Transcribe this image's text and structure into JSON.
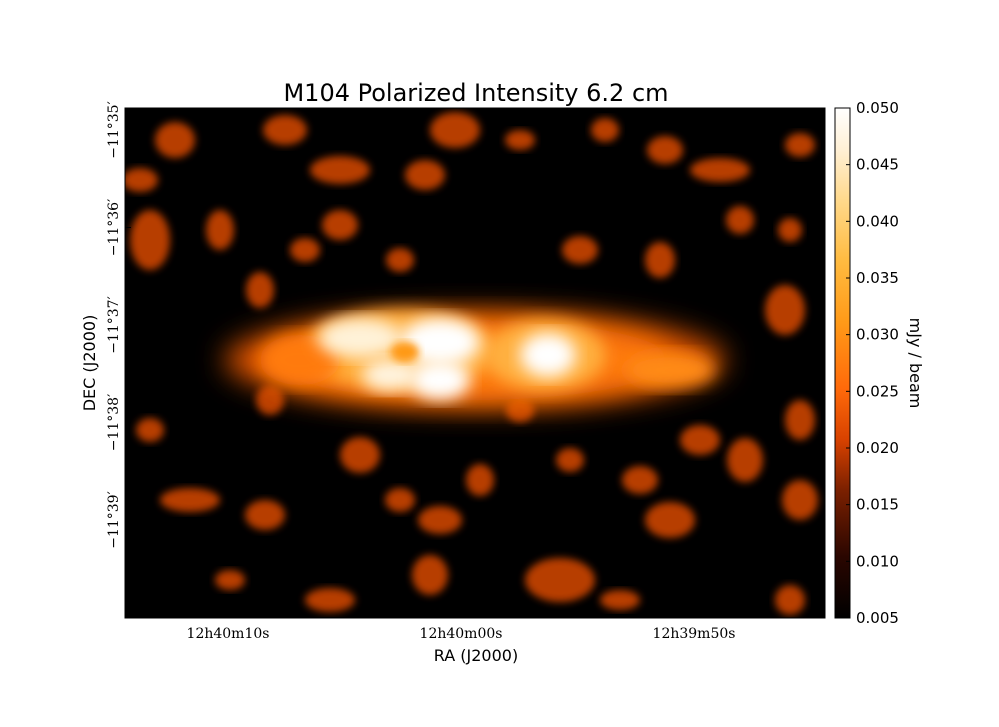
{
  "chart_data": {
    "type": "heatmap",
    "title": "M104 Polarized Intensity 6.2 cm",
    "xlabel": "RA (J2000)",
    "ylabel": "DEC (J2000)",
    "x_ticks": [
      {
        "label": "12h40m10s",
        "ra_seconds_offset": 10
      },
      {
        "label": "12h40m00s",
        "ra_seconds_offset": 0
      },
      {
        "label": "12h39m50s",
        "ra_seconds_offset": -10
      }
    ],
    "y_ticks": [
      {
        "label": "−11°35′",
        "dec_arcmin": -35
      },
      {
        "label": "−11°36′",
        "dec_arcmin": -36
      },
      {
        "label": "−11°37′",
        "dec_arcmin": -37
      },
      {
        "label": "−11°38′",
        "dec_arcmin": -38
      },
      {
        "label": "−11°39′",
        "dec_arcmin": -39
      }
    ],
    "colorbar": {
      "label": "mJy / beam",
      "range": [
        0.005,
        0.05
      ],
      "ticks": [
        "0.005",
        "0.010",
        "0.015",
        "0.020",
        "0.025",
        "0.030",
        "0.035",
        "0.040",
        "0.045",
        "0.050"
      ],
      "colormap": [
        "#000000",
        "#3a0a00",
        "#8c2a00",
        "#e04a00",
        "#ff7a10",
        "#ffa020",
        "#ffc860",
        "#ffe8b8",
        "#ffffff"
      ]
    },
    "grid": false,
    "notes_visible": "Bright polarized emission along the galaxy disk, brightest near center-left and center-right lobes"
  }
}
